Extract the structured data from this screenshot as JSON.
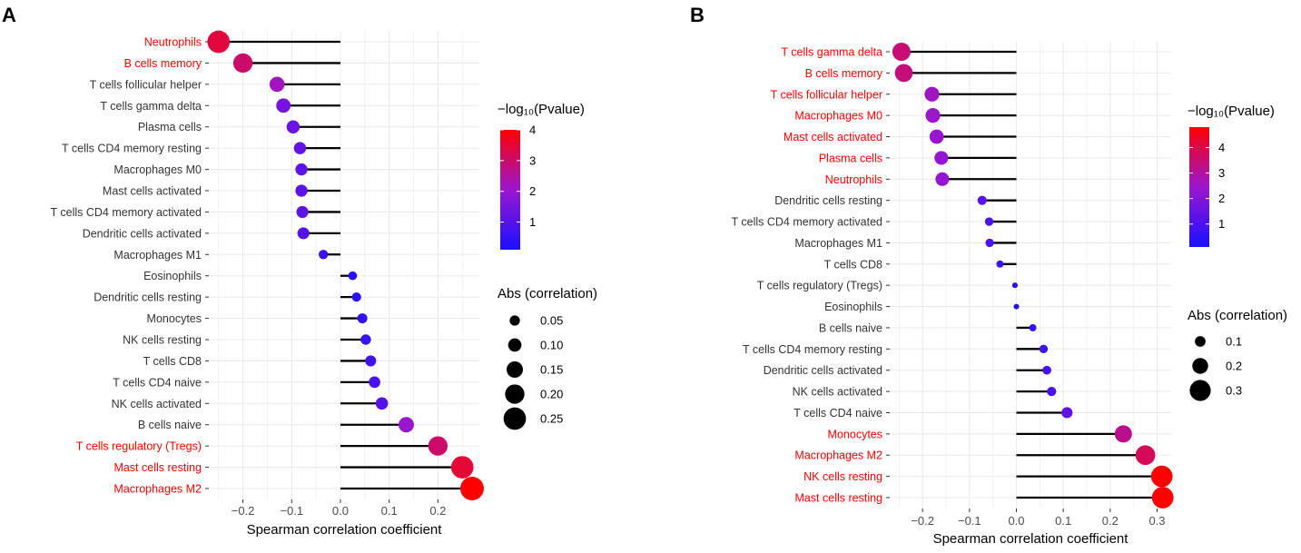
{
  "panels": [
    {
      "label": "A",
      "xlabel": "Spearman correlation coefficient",
      "x_ticks": [
        -0.2,
        -0.1,
        0.0,
        0.1,
        0.2
      ],
      "x_tick_labels": [
        "−0.2",
        "−0.1",
        "0.0",
        "0.1",
        "0.2"
      ],
      "color_legend_title": "−log₁₀(Pvalue)",
      "color_legend_ticks": [
        1,
        2,
        3,
        4
      ],
      "color_range": [
        0.1,
        4.0
      ],
      "size_legend_title": "Abs (correlation)",
      "size_legend_values": [
        0.05,
        0.1,
        0.15,
        0.2,
        0.25
      ],
      "size_legend_labels": [
        "0.05",
        "0.10",
        "0.15",
        "0.20",
        "0.25"
      ],
      "chart_data": {
        "type": "lollipop",
        "categories": [
          "Neutrophils",
          "B cells memory",
          "T cells follicular helper",
          "T cells gamma delta",
          "Plasma cells",
          "T cells CD4 memory resting",
          "Macrophages M0",
          "Mast cells activated",
          "T cells CD4 memory activated",
          "Dendritic cells activated",
          "Macrophages M1",
          "Eosinophils",
          "Dendritic cells resting",
          "Monocytes",
          "NK cells resting",
          "T cells CD8",
          "T cells CD4 naive",
          "NK cells activated",
          "B cells naive",
          "T cells regulatory (Tregs)",
          "Mast cells resting",
          "Macrophages M2"
        ],
        "values": [
          -0.25,
          -0.2,
          -0.13,
          -0.117,
          -0.097,
          -0.083,
          -0.08,
          -0.08,
          -0.078,
          -0.076,
          -0.035,
          0.025,
          0.033,
          0.045,
          0.052,
          0.062,
          0.07,
          0.085,
          0.135,
          0.2,
          0.25,
          0.27
        ],
        "neg_log10_p": [
          3.4,
          3.0,
          2.2,
          1.5,
          1.3,
          1.2,
          1.1,
          1.1,
          1.1,
          1.0,
          0.6,
          0.3,
          0.35,
          0.5,
          0.6,
          0.7,
          0.8,
          1.0,
          2.0,
          3.0,
          3.5,
          4.0
        ],
        "significant": [
          true,
          true,
          false,
          false,
          false,
          false,
          false,
          false,
          false,
          false,
          false,
          false,
          false,
          false,
          false,
          false,
          false,
          false,
          false,
          true,
          true,
          true
        ],
        "xlim": [
          -0.27,
          0.285
        ],
        "xlabel": "Spearman correlation coefficient"
      }
    },
    {
      "label": "B",
      "xlabel": "Spearman correlation coefficient",
      "x_ticks": [
        -0.2,
        -0.1,
        0.0,
        0.1,
        0.2,
        0.3
      ],
      "x_tick_labels": [
        "−0.2",
        "−0.1",
        "0.0",
        "0.1",
        "0.2",
        "0.3"
      ],
      "color_legend_title": "−log₁₀(Pvalue)",
      "color_legend_ticks": [
        1,
        2,
        3,
        4
      ],
      "color_range": [
        0.1,
        4.8
      ],
      "size_legend_title": "Abs (correlation)",
      "size_legend_values": [
        0.1,
        0.2,
        0.3
      ],
      "size_legend_labels": [
        "0.1",
        "0.2",
        "0.3"
      ],
      "chart_data": {
        "type": "lollipop",
        "categories": [
          "T cells gamma delta",
          "B cells memory",
          "T cells follicular helper",
          "Macrophages M0",
          "Mast cells activated",
          "Plasma cells",
          "Neutrophils",
          "Dendritic cells resting",
          "T cells CD4 memory activated",
          "Macrophages M1",
          "T cells CD8",
          "T cells regulatory (Tregs)",
          "Eosinophils",
          "B cells naive",
          "T cells CD4 memory resting",
          "Dendritic cells activated",
          "NK cells activated",
          "T cells CD4 naive",
          "Monocytes",
          "Macrophages M2",
          "NK cells resting",
          "Mast cells resting"
        ],
        "values": [
          -0.245,
          -0.24,
          -0.18,
          -0.178,
          -0.17,
          -0.16,
          -0.158,
          -0.073,
          -0.058,
          -0.057,
          -0.035,
          -0.003,
          0.0,
          0.035,
          0.058,
          0.065,
          0.075,
          0.108,
          0.228,
          0.275,
          0.31,
          0.312
        ],
        "neg_log10_p": [
          3.5,
          3.4,
          2.6,
          2.5,
          2.4,
          2.3,
          2.3,
          1.2,
          1.0,
          1.0,
          0.8,
          0.3,
          0.2,
          0.6,
          0.8,
          0.9,
          1.0,
          1.4,
          3.2,
          3.8,
          4.8,
          4.8
        ],
        "significant": [
          true,
          true,
          true,
          true,
          true,
          true,
          true,
          false,
          false,
          false,
          false,
          false,
          false,
          false,
          false,
          false,
          false,
          false,
          true,
          true,
          true,
          true
        ],
        "xlim": [
          -0.27,
          0.33
        ],
        "xlabel": "Spearman correlation coefficient"
      }
    }
  ],
  "colors": {
    "low": "#1a10ff",
    "mid": "#9a16cf",
    "high": "#ff0000",
    "significant_label": "#ff0000",
    "normal_label": "#333333",
    "grid": "#ebebeb",
    "stem": "#000000"
  }
}
